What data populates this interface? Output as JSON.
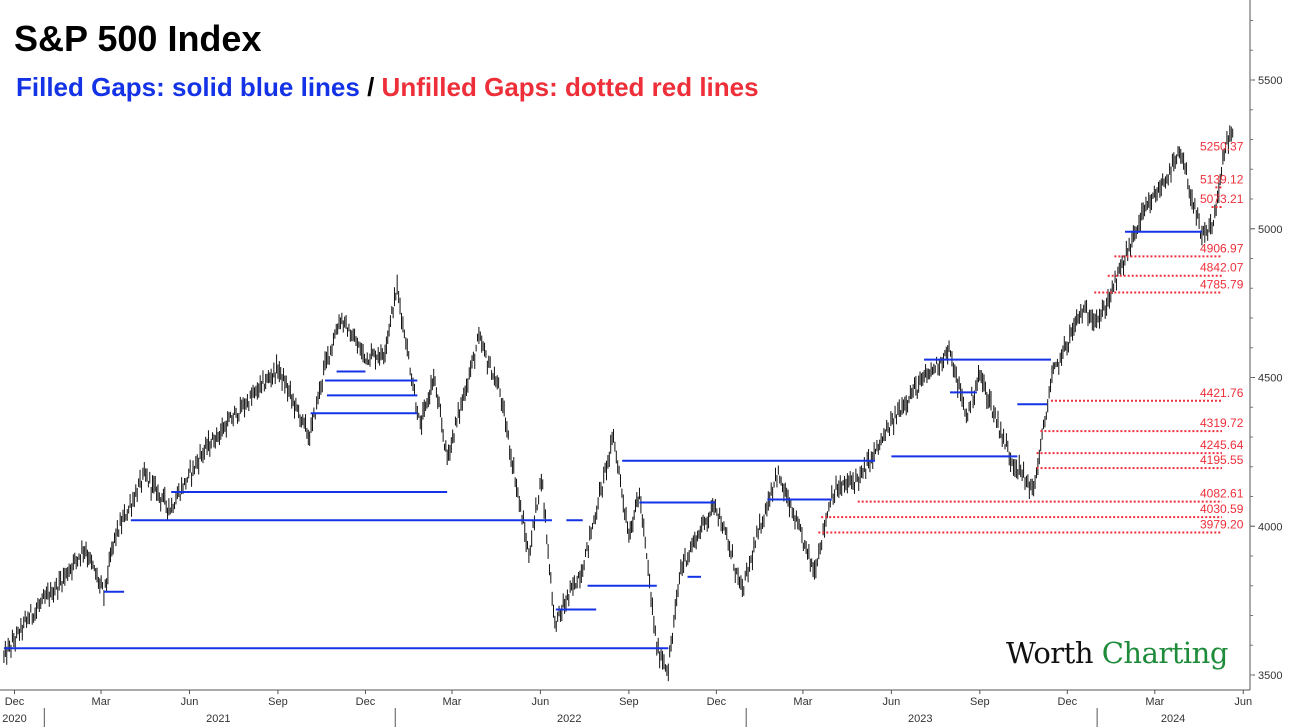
{
  "title": "S&P 500 Index",
  "subtitle": {
    "filled": "Filled Gaps: solid blue lines",
    "separator": "/",
    "unfilled": "Unfilled Gaps: dotted red lines"
  },
  "logo": {
    "part1": "Worth",
    "part2": "Charting"
  },
  "colors": {
    "filled": "#1433e6",
    "unfilled": "#ee2f3a",
    "price": "#111111",
    "logo_green": "#1e8b3a"
  },
  "chart_data": {
    "type": "line",
    "title": "S&P 500 Index",
    "y_axis": {
      "position": "right",
      "ylim": [
        3480,
        5770
      ],
      "ticks": [
        3500,
        4000,
        4500,
        5000,
        5500
      ]
    },
    "x_axis": {
      "month_ticks": [
        "Dec",
        "Mar",
        "Jun",
        "Sep",
        "Dec",
        "Mar",
        "Jun",
        "Sep",
        "Dec",
        "Mar",
        "Jun",
        "Sep",
        "Dec",
        "Mar",
        "Jun"
      ],
      "year_ticks": [
        "2020",
        "2021",
        "2022",
        "2023",
        "2024"
      ]
    },
    "price": {
      "name": "S&P 500",
      "points": [
        [
          "2020-11-20",
          3560
        ],
        [
          "2020-12-15",
          3690
        ],
        [
          "2021-01-15",
          3800
        ],
        [
          "2021-02-12",
          3930
        ],
        [
          "2021-03-04",
          3770
        ],
        [
          "2021-03-15",
          3960
        ],
        [
          "2021-04-15",
          4170
        ],
        [
          "2021-05-12",
          4060
        ],
        [
          "2021-06-15",
          4250
        ],
        [
          "2021-07-15",
          4360
        ],
        [
          "2021-08-15",
          4470
        ],
        [
          "2021-09-01",
          4530
        ],
        [
          "2021-10-04",
          4300
        ],
        [
          "2021-10-20",
          4540
        ],
        [
          "2021-11-05",
          4700
        ],
        [
          "2021-11-30",
          4570
        ],
        [
          "2021-12-20",
          4580
        ],
        [
          "2022-01-03",
          4800
        ],
        [
          "2022-01-27",
          4330
        ],
        [
          "2022-02-10",
          4500
        ],
        [
          "2022-02-24",
          4230
        ],
        [
          "2022-03-29",
          4630
        ],
        [
          "2022-04-20",
          4450
        ],
        [
          "2022-05-20",
          3900
        ],
        [
          "2022-06-02",
          4170
        ],
        [
          "2022-06-16",
          3670
        ],
        [
          "2022-07-15",
          3860
        ],
        [
          "2022-08-16",
          4300
        ],
        [
          "2022-09-01",
          3970
        ],
        [
          "2022-09-12",
          4110
        ],
        [
          "2022-09-30",
          3590
        ],
        [
          "2022-10-12",
          3520
        ],
        [
          "2022-10-25",
          3860
        ],
        [
          "2022-11-10",
          3960
        ],
        [
          "2022-11-30",
          4080
        ],
        [
          "2022-12-28",
          3780
        ],
        [
          "2023-01-15",
          3990
        ],
        [
          "2023-02-02",
          4180
        ],
        [
          "2023-03-13",
          3850
        ],
        [
          "2023-03-31",
          4110
        ],
        [
          "2023-05-01",
          4170
        ],
        [
          "2023-06-15",
          4420
        ],
        [
          "2023-07-31",
          4590
        ],
        [
          "2023-08-18",
          4370
        ],
        [
          "2023-09-01",
          4510
        ],
        [
          "2023-10-03",
          4230
        ],
        [
          "2023-10-27",
          4120
        ],
        [
          "2023-11-15",
          4500
        ],
        [
          "2023-12-15",
          4720
        ],
        [
          "2024-01-05",
          4700
        ],
        [
          "2024-02-15",
          5030
        ],
        [
          "2024-03-28",
          5250
        ],
        [
          "2024-04-19",
          4967
        ],
        [
          "2024-05-01",
          5018
        ],
        [
          "2024-05-15",
          5300
        ],
        [
          "2024-05-21",
          5320
        ]
      ]
    },
    "filled_gaps": [
      {
        "start": "2020-11-20",
        "end": "2022-10-12",
        "level": 3590
      },
      {
        "start": "2021-03-04",
        "end": "2021-03-25",
        "level": 3780
      },
      {
        "start": "2021-04-01",
        "end": "2022-06-13",
        "level": 4020
      },
      {
        "start": "2021-05-13",
        "end": "2022-02-24",
        "level": 4115
      },
      {
        "start": "2021-11-01",
        "end": "2021-12-01",
        "level": 4520
      },
      {
        "start": "2021-10-20",
        "end": "2022-01-24",
        "level": 4490
      },
      {
        "start": "2021-10-22",
        "end": "2022-01-24",
        "level": 4440
      },
      {
        "start": "2021-10-05",
        "end": "2022-01-24",
        "level": 4380
      },
      {
        "start": "2022-06-28",
        "end": "2022-07-15",
        "level": 4020
      },
      {
        "start": "2022-06-17",
        "end": "2022-07-29",
        "level": 3720
      },
      {
        "start": "2022-07-20",
        "end": "2022-09-30",
        "level": 3800
      },
      {
        "start": "2022-08-25",
        "end": "2023-05-15",
        "level": 4220
      },
      {
        "start": "2022-09-12",
        "end": "2022-11-30",
        "level": 4080
      },
      {
        "start": "2022-11-01",
        "end": "2022-11-15",
        "level": 3830
      },
      {
        "start": "2023-01-23",
        "end": "2023-03-31",
        "level": 4090
      },
      {
        "start": "2023-06-01",
        "end": "2023-10-10",
        "level": 4235
      },
      {
        "start": "2023-07-05",
        "end": "2023-11-14",
        "level": 4560
      },
      {
        "start": "2023-08-01",
        "end": "2023-08-29",
        "level": 4450
      },
      {
        "start": "2023-10-10",
        "end": "2023-11-10",
        "level": 4410
      },
      {
        "start": "2024-01-30",
        "end": "2024-04-19",
        "level": 4990
      }
    ],
    "unfilled_gaps": [
      {
        "start": "2024-05-10",
        "level": 5250.37,
        "label": "5250.37"
      },
      {
        "start": "2024-05-03",
        "level": 5139.12,
        "label": "5139.12"
      },
      {
        "start": "2024-04-29",
        "level": 5073.21,
        "label": "5073.21"
      },
      {
        "start": "2024-01-19",
        "level": 4906.97,
        "label": "4906.97"
      },
      {
        "start": "2024-01-12",
        "level": 4842.07,
        "label": "4842.07"
      },
      {
        "start": "2023-12-29",
        "level": 4785.79,
        "label": "4785.79"
      },
      {
        "start": "2023-11-14",
        "level": 4421.76,
        "label": "4421.76"
      },
      {
        "start": "2023-11-03",
        "level": 4319.72,
        "label": "4319.72"
      },
      {
        "start": "2023-10-30",
        "level": 4245.64,
        "label": "4245.64"
      },
      {
        "start": "2023-10-30",
        "level": 4195.55,
        "label": "4195.55"
      },
      {
        "start": "2023-04-27",
        "level": 4082.61,
        "label": "4082.61"
      },
      {
        "start": "2023-03-20",
        "level": 4030.59,
        "label": "4030.59"
      },
      {
        "start": "2023-03-17",
        "level": 3979.2,
        "label": "3979.20"
      }
    ]
  }
}
